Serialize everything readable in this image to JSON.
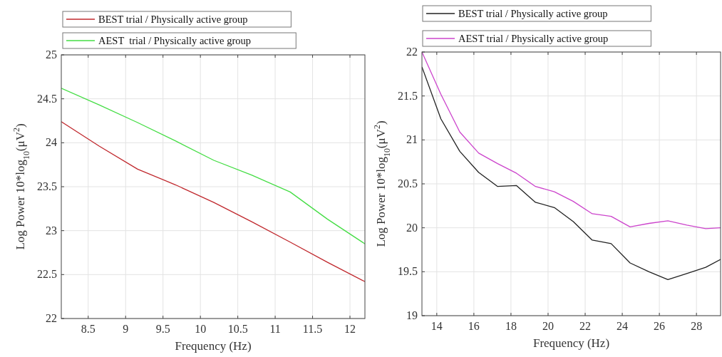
{
  "chart_data": [
    {
      "type": "line",
      "xlabel": "Frequency (Hz)",
      "ylabel": "Log Power 10*log$_{10}$(μV$^{2}$)",
      "xlim": [
        8.14,
        12.2
      ],
      "ylim": [
        22,
        25
      ],
      "xticks": [
        8.5,
        9,
        9.5,
        10,
        10.5,
        11,
        11.5,
        12
      ],
      "yticks": [
        22,
        22.5,
        23,
        23.5,
        24,
        24.5,
        25
      ],
      "grid": true,
      "legend": "top left",
      "x": [
        8.14,
        8.65,
        9.16,
        9.67,
        10.18,
        10.69,
        11.2,
        11.7,
        12.2
      ],
      "series": [
        {
          "name": "BEST trial / Physically active group",
          "color": "#c0282d",
          "values": [
            24.24,
            23.96,
            23.7,
            23.52,
            23.32,
            23.1,
            22.87,
            22.64,
            22.42
          ]
        },
        {
          "name": "AEST  trial / Physically active group",
          "color": "#44dd44",
          "values": [
            24.62,
            24.43,
            24.23,
            24.02,
            23.8,
            23.63,
            23.44,
            23.13,
            22.85
          ]
        }
      ]
    },
    {
      "type": "line",
      "xlabel": "Frequency (Hz)",
      "ylabel": "Log Power 10*log$_{10}$(μV$^{2}$)",
      "xlim": [
        13.2,
        29.3
      ],
      "ylim": [
        19,
        22
      ],
      "xticks": [
        14,
        16,
        18,
        20,
        22,
        24,
        26,
        28
      ],
      "yticks": [
        19,
        19.5,
        20,
        20.5,
        21,
        21.5,
        22
      ],
      "grid": true,
      "legend": "top left",
      "x": [
        13.2,
        14.22,
        15.24,
        16.26,
        17.28,
        18.3,
        19.32,
        20.34,
        21.36,
        22.38,
        23.4,
        24.42,
        25.44,
        26.46,
        27.48,
        28.5,
        29.3
      ],
      "series": [
        {
          "name": "BEST trial / Physically active group",
          "color": "#222222",
          "values": [
            21.83,
            21.24,
            20.87,
            20.63,
            20.47,
            20.48,
            20.29,
            20.23,
            20.07,
            19.86,
            19.82,
            19.6,
            19.5,
            19.41,
            19.48,
            19.55,
            19.64
          ]
        },
        {
          "name": "AEST trial / Physically active group",
          "color": "#cc44cc",
          "values": [
            22.0,
            21.52,
            21.09,
            20.85,
            20.73,
            20.62,
            20.47,
            20.41,
            20.3,
            20.16,
            20.13,
            20.01,
            20.05,
            20.08,
            20.03,
            19.99,
            20.0
          ]
        }
      ]
    }
  ]
}
